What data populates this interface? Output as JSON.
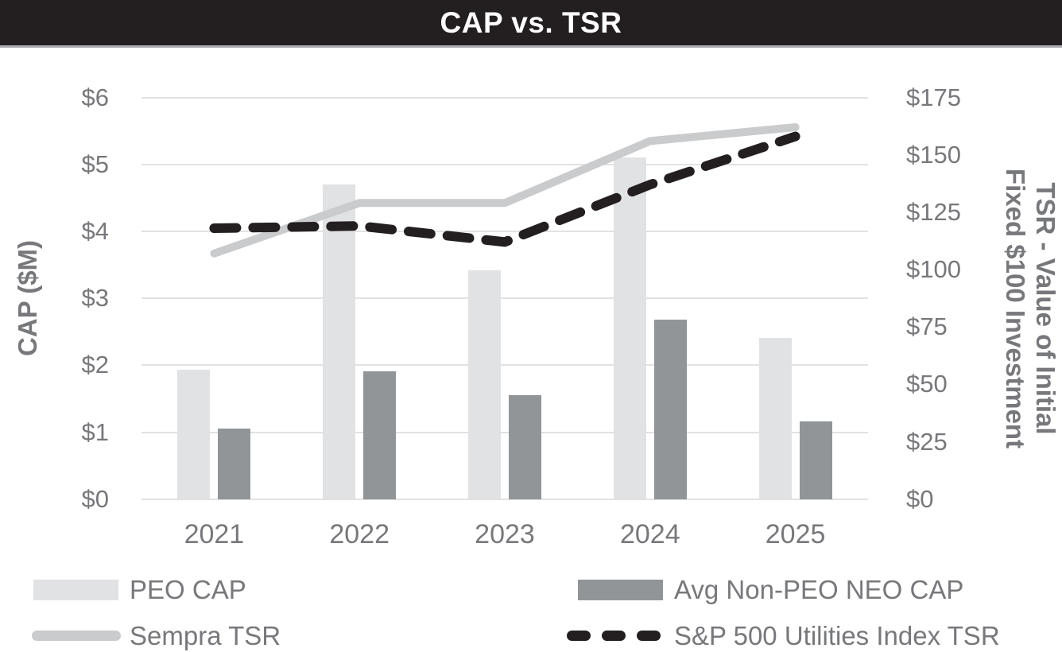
{
  "header": {
    "title": "CAP vs. TSR"
  },
  "colors": {
    "title_bar": "#231F20",
    "title_text": "#FFFFFF",
    "axis_text": "#77787B",
    "gridline": "#E2E2E3",
    "bar_light": "#E1E2E4",
    "bar_dark": "#919598",
    "line_solid": "#C9CBCD",
    "line_dashed": "#231F20"
  },
  "chart_data": {
    "type": "combo",
    "categories": [
      "2021",
      "2022",
      "2023",
      "2024",
      "2025"
    ],
    "left_axis": {
      "title": "CAP ($M)",
      "ticks": [
        "$0",
        "$1",
        "$2",
        "$3",
        "$4",
        "$5",
        "$6"
      ],
      "range": [
        0,
        6
      ]
    },
    "right_axis": {
      "title_lines": [
        "TSR - Value of Initial",
        "Fixed $100 Investment"
      ],
      "ticks": [
        "$0",
        "$25",
        "$50",
        "$75",
        "$100",
        "$125",
        "$150",
        "$175"
      ],
      "range": [
        0,
        175
      ]
    },
    "grid": true,
    "legend_position": "bottom",
    "series": [
      {
        "name": "PEO CAP",
        "type": "bar",
        "axis": "left",
        "color": "#E1E2E4",
        "values": [
          1.93,
          4.7,
          3.42,
          5.1,
          2.41
        ]
      },
      {
        "name": "Avg Non-PEO NEO CAP",
        "type": "bar",
        "axis": "left",
        "color": "#919598",
        "values": [
          1.05,
          1.91,
          1.55,
          2.68,
          1.16
        ]
      },
      {
        "name": "Sempra TSR",
        "type": "line",
        "axis": "right",
        "dash": "solid",
        "color": "#C9CBCD",
        "values": [
          107,
          129,
          129,
          156,
          162
        ]
      },
      {
        "name": "S&P 500 Utilities Index TSR",
        "type": "line",
        "axis": "right",
        "dash": "dashed",
        "color": "#231F20",
        "values": [
          118,
          119,
          112,
          137,
          158
        ]
      }
    ]
  }
}
